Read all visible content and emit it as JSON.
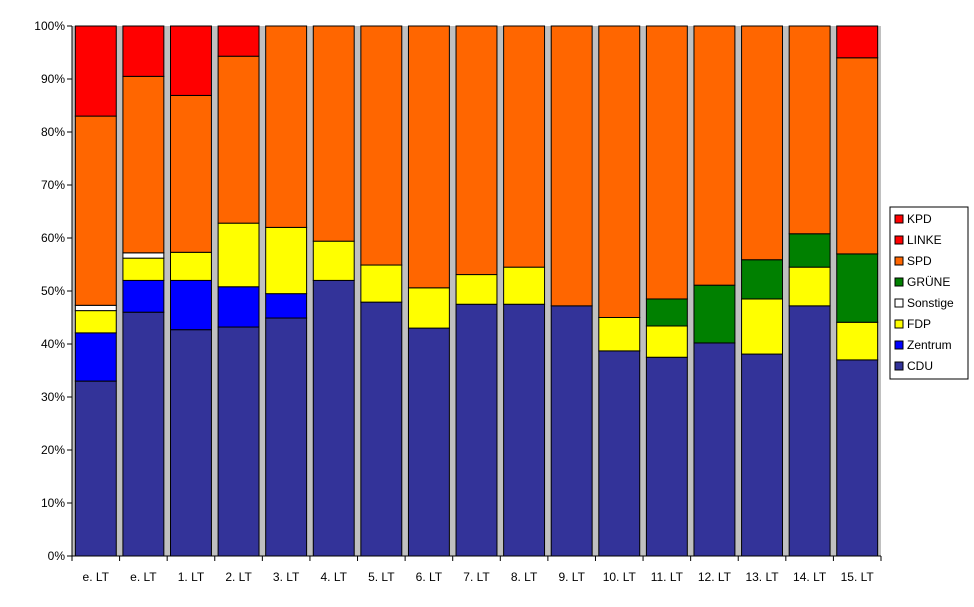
{
  "chart_data": {
    "type": "bar",
    "stacked": true,
    "normalized": true,
    "categories": [
      "e. LT",
      "e. LT",
      "1. LT",
      "2. LT",
      "3. LT",
      "4. LT",
      "5. LT",
      "6. LT",
      "7. LT",
      "8. LT",
      "9. LT",
      "10. LT",
      "11. LT",
      "12. LT",
      "13. LT",
      "14. LT",
      "15. LT"
    ],
    "y_ticks": [
      "0%",
      "10%",
      "20%",
      "30%",
      "40%",
      "50%",
      "60%",
      "70%",
      "80%",
      "90%",
      "100%"
    ],
    "ylim": [
      0,
      100
    ],
    "grid": false,
    "legend_position": "right",
    "plot_background": "#c0c0c0",
    "series": [
      {
        "name": "CDU",
        "color": "#333399",
        "values": [
          33.0,
          46.0,
          42.7,
          43.2,
          44.9,
          52.0,
          47.9,
          43.0,
          47.5,
          47.5,
          47.2,
          38.7,
          37.5,
          40.2,
          38.1,
          47.2,
          37.0
        ]
      },
      {
        "name": "Zentrum",
        "color": "#0000ff",
        "values": [
          9.1,
          6.0,
          9.3,
          7.6,
          4.6,
          0,
          0,
          0,
          0,
          0,
          0,
          0,
          0,
          0,
          0,
          0,
          0
        ]
      },
      {
        "name": "FDP",
        "color": "#ffff00",
        "values": [
          4.2,
          4.2,
          5.3,
          12.0,
          12.5,
          7.4,
          7.0,
          7.6,
          5.6,
          7.0,
          0,
          6.3,
          5.9,
          0,
          10.4,
          7.3,
          7.1
        ]
      },
      {
        "name": "Sonstige",
        "color": "#ffffff",
        "values": [
          1.0,
          1.0,
          0,
          0,
          0,
          0,
          0,
          0,
          0,
          0,
          0,
          0,
          0,
          0,
          0,
          0,
          0
        ]
      },
      {
        "name": "GRÜNE",
        "color": "#008000",
        "values": [
          0,
          0,
          0,
          0,
          0,
          0,
          0,
          0,
          0,
          0,
          0,
          0,
          5.1,
          10.9,
          7.4,
          6.3,
          12.9
        ]
      },
      {
        "name": "SPD",
        "color": "#ff6600",
        "values": [
          35.7,
          33.3,
          29.6,
          31.5,
          38.0,
          40.6,
          45.1,
          49.4,
          46.9,
          45.5,
          52.8,
          55.0,
          51.5,
          48.9,
          44.1,
          39.2,
          37.0
        ]
      },
      {
        "name": "LINKE",
        "color": "#ff0000",
        "values": [
          0,
          0,
          0,
          0,
          0,
          0,
          0,
          0,
          0,
          0,
          0,
          0,
          0,
          0,
          0,
          0,
          6.0
        ]
      },
      {
        "name": "KPD",
        "color": "#ff0000",
        "values": [
          17.0,
          9.5,
          13.1,
          5.7,
          0,
          0,
          0,
          0,
          0,
          0,
          0,
          0,
          0,
          0,
          0,
          0,
          0
        ]
      }
    ],
    "legend_order": [
      "KPD",
      "LINKE",
      "SPD",
      "GRÜNE",
      "Sonstige",
      "FDP",
      "Zentrum",
      "CDU"
    ]
  }
}
